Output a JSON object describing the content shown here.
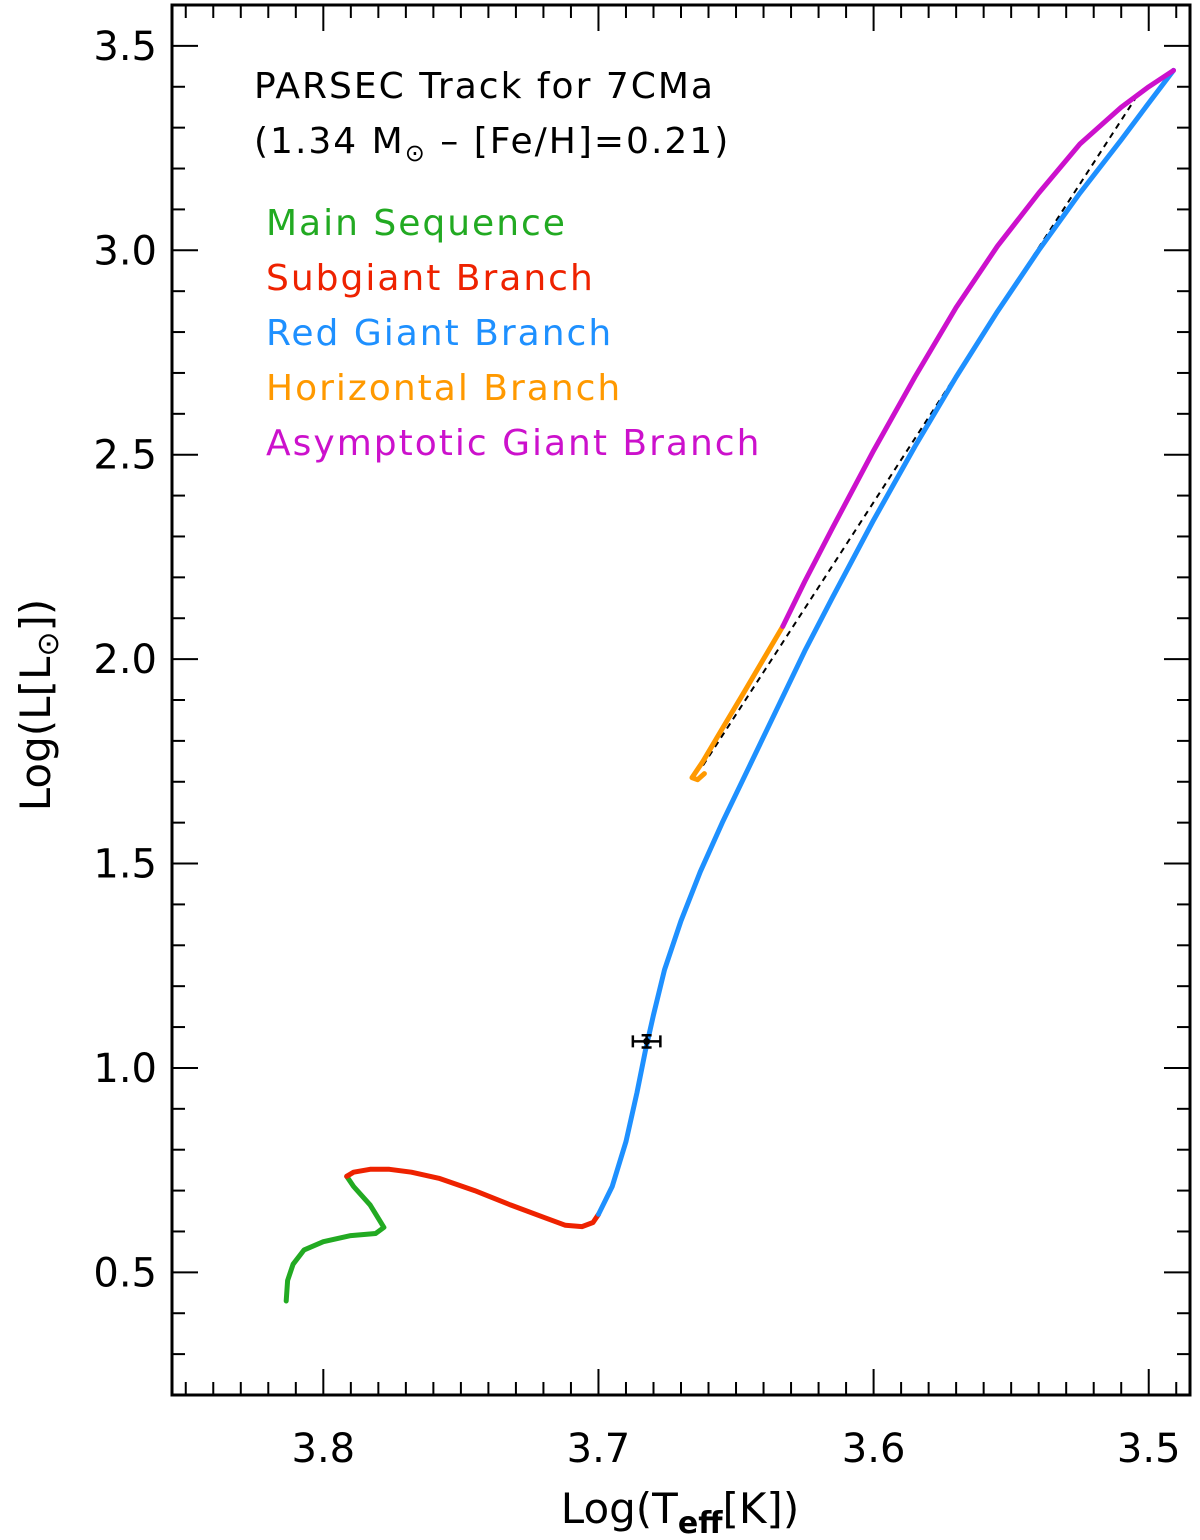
{
  "chart_data": {
    "type": "line",
    "title": "PARSEC Track for 7CMa",
    "subtitle": {
      "prefix": "(1.34 M",
      "sun_symbol": "⊙",
      "suffix": " – [Fe/H]=0.21)"
    },
    "xlabel": {
      "prefix": "Log(T",
      "subscript": "eff",
      "suffix": "[K])"
    },
    "ylabel": {
      "prefix": "Log(L[L",
      "sun_symbol": "⊙",
      "suffix": "])"
    },
    "xlim": [
      3.855,
      3.485
    ],
    "ylim": [
      0.2,
      3.6
    ],
    "x_inverted": true,
    "xticks": [
      {
        "value": 3.8,
        "label": "3.8"
      },
      {
        "value": 3.7,
        "label": "3.7"
      },
      {
        "value": 3.6,
        "label": "3.6"
      },
      {
        "value": 3.5,
        "label": "3.5"
      }
    ],
    "yticks": [
      {
        "value": 0.5,
        "label": "0.5"
      },
      {
        "value": 1.0,
        "label": "1.0"
      },
      {
        "value": 1.5,
        "label": "1.5"
      },
      {
        "value": 2.0,
        "label": "2.0"
      },
      {
        "value": 2.5,
        "label": "2.5"
      },
      {
        "value": 3.0,
        "label": "3.0"
      },
      {
        "value": 3.5,
        "label": "3.5"
      }
    ],
    "legend_position": "top-left",
    "series": [
      {
        "name": "Main Sequence",
        "color": "#22aa22",
        "x": [
          3.8135,
          3.813,
          3.811,
          3.807,
          3.8,
          3.79,
          3.781,
          3.778,
          3.783,
          3.789,
          3.7915
        ],
        "y": [
          0.43,
          0.48,
          0.52,
          0.555,
          0.575,
          0.59,
          0.595,
          0.61,
          0.665,
          0.71,
          0.735
        ]
      },
      {
        "name": "Subgiant Branch",
        "color": "#ee2200",
        "x": [
          3.7915,
          3.789,
          3.783,
          3.776,
          3.768,
          3.758,
          3.745,
          3.732,
          3.72,
          3.712,
          3.706,
          3.702,
          3.7
        ],
        "y": [
          0.735,
          0.745,
          0.752,
          0.752,
          0.745,
          0.73,
          0.7,
          0.665,
          0.635,
          0.615,
          0.612,
          0.622,
          0.642
        ]
      },
      {
        "name": "Red Giant Branch",
        "color": "#1e90ff",
        "x": [
          3.7,
          3.695,
          3.69,
          3.686,
          3.683,
          3.68,
          3.676,
          3.67,
          3.663,
          3.655,
          3.645,
          3.635,
          3.625,
          3.615,
          3.6,
          3.585,
          3.57,
          3.555,
          3.54,
          3.525,
          3.51,
          3.5,
          3.491
        ],
        "y": [
          0.642,
          0.71,
          0.82,
          0.94,
          1.04,
          1.13,
          1.24,
          1.36,
          1.48,
          1.6,
          1.74,
          1.88,
          2.02,
          2.15,
          2.34,
          2.52,
          2.69,
          2.85,
          3.0,
          3.14,
          3.27,
          3.36,
          3.44
        ]
      },
      {
        "name": "Horizontal Branch",
        "color": "#ff9900",
        "x": [
          3.6615,
          3.664,
          3.666,
          3.662,
          3.655,
          3.647,
          3.64,
          3.633
        ],
        "y": [
          1.72,
          1.705,
          1.71,
          1.75,
          1.83,
          1.92,
          2.0,
          2.08
        ]
      },
      {
        "name": "Asymptotic Giant Branch",
        "color": "#cc11cc",
        "x": [
          3.633,
          3.625,
          3.615,
          3.6,
          3.585,
          3.57,
          3.555,
          3.54,
          3.525,
          3.51,
          3.5,
          3.491
        ],
        "y": [
          2.08,
          2.19,
          2.32,
          2.51,
          2.69,
          2.86,
          3.01,
          3.14,
          3.26,
          3.35,
          3.4,
          3.44
        ]
      }
    ],
    "dashed_line": {
      "color": "#000000",
      "x": [
        3.662,
        3.505
      ],
      "y": [
        1.74,
        3.37
      ]
    },
    "data_point": {
      "x": 3.6825,
      "y": 1.065,
      "x_err": 0.005,
      "y_err": 0.015,
      "color": "#000000"
    }
  }
}
